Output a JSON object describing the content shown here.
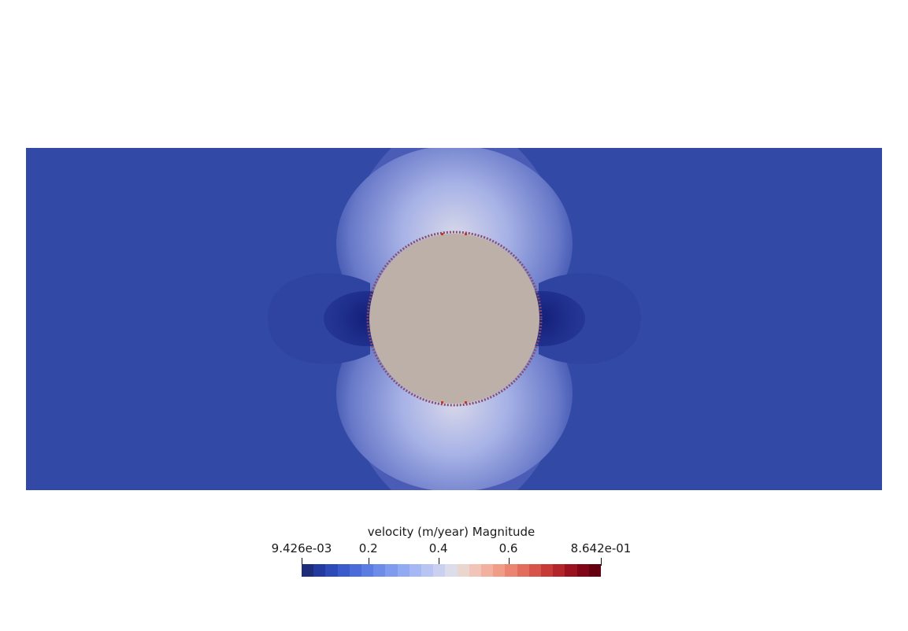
{
  "window": {
    "background": "#ffffff"
  },
  "scene": {
    "domain_color": "#3349a6",
    "inclusion_color": "#bdb0a8",
    "colormap": "Cool to Warm"
  },
  "scalar_bar": {
    "title": "velocity (m/year) Magnitude",
    "range": [
      0.009426,
      0.8642
    ],
    "ticks": [
      {
        "label": "9.426e-03",
        "value": 0.009426
      },
      {
        "label": "0.2",
        "value": 0.2
      },
      {
        "label": "0.4",
        "value": 0.4
      },
      {
        "label": "0.6",
        "value": 0.6
      },
      {
        "label": "8.642e-01",
        "value": 0.8642
      }
    ],
    "colors": [
      "#1e2c7a",
      "#243a9e",
      "#2c4bb8",
      "#3a5bcb",
      "#4a6bd8",
      "#5b7ce1",
      "#6d8ce8",
      "#7f9bed",
      "#92aaf1",
      "#a5b8f3",
      "#b8c5f3",
      "#cad1f0",
      "#dcdcea",
      "#ebd5cf",
      "#f0c4b6",
      "#f2b19e",
      "#f09c87",
      "#eb8571",
      "#e26d5c",
      "#d65449",
      "#c63b38",
      "#b2252a",
      "#9a121f",
      "#7f0616",
      "#66000f"
    ]
  }
}
